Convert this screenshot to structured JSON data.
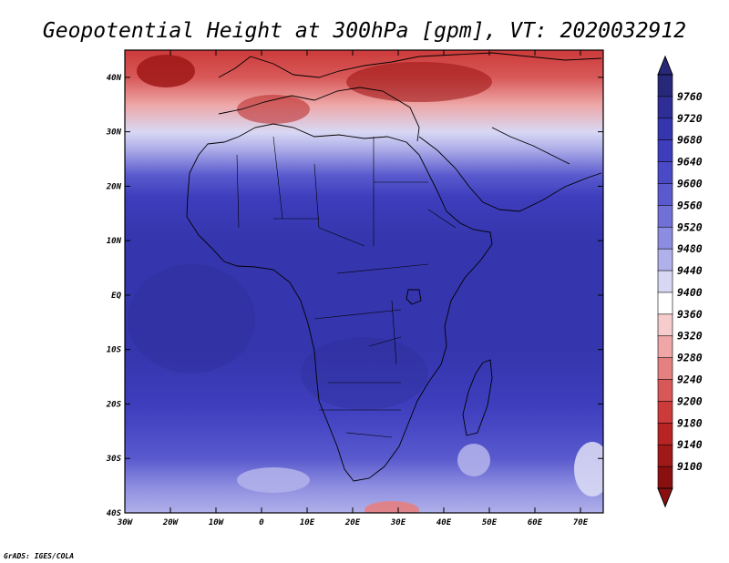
{
  "title": "Geopotential Height at 300hPa [gpm], VT: 2020032912",
  "credit": "GrADS: IGES/COLA",
  "map": {
    "lon_range": [
      -30,
      75
    ],
    "lat_range": [
      -40,
      45
    ],
    "lat_ticks": [
      {
        "lat": 40,
        "label": "40N"
      },
      {
        "lat": 30,
        "label": "30N"
      },
      {
        "lat": 20,
        "label": "20N"
      },
      {
        "lat": 10,
        "label": "10N"
      },
      {
        "lat": 0,
        "label": "EQ"
      },
      {
        "lat": -10,
        "label": "10S"
      },
      {
        "lat": -20,
        "label": "20S"
      },
      {
        "lat": -30,
        "label": "30S"
      },
      {
        "lat": -40,
        "label": "40S"
      }
    ],
    "lon_ticks": [
      {
        "lon": -30,
        "label": "30W"
      },
      {
        "lon": -20,
        "label": "20W"
      },
      {
        "lon": -10,
        "label": "10W"
      },
      {
        "lon": 0,
        "label": "0"
      },
      {
        "lon": 10,
        "label": "10E"
      },
      {
        "lon": 20,
        "label": "20E"
      },
      {
        "lon": 30,
        "label": "30E"
      },
      {
        "lon": 40,
        "label": "40E"
      },
      {
        "lon": 50,
        "label": "50E"
      },
      {
        "lon": 60,
        "label": "60E"
      },
      {
        "lon": 70,
        "label": "70E"
      }
    ]
  },
  "colorbar": {
    "labels": [
      "9760",
      "9720",
      "9680",
      "9640",
      "9600",
      "9560",
      "9520",
      "9480",
      "9440",
      "9400",
      "9360",
      "9320",
      "9280",
      "9240",
      "9200",
      "9180",
      "9140",
      "9100"
    ],
    "colors": [
      "#28287a",
      "#2e2e96",
      "#3535ad",
      "#3e3ebd",
      "#4a4ac6",
      "#5a5ace",
      "#7070d6",
      "#8c8ce0",
      "#b0b0ea",
      "#d8d8f4",
      "#ffffff",
      "#f6cccc",
      "#eea6a6",
      "#e48080",
      "#d85858",
      "#cc3a3a",
      "#b82424",
      "#a01818",
      "#8a1010"
    ]
  },
  "field_bands": [
    {
      "lat": 45,
      "value": 9180
    },
    {
      "lat": 40,
      "value": 9220
    },
    {
      "lat": 35,
      "value": 9300
    },
    {
      "lat": 30,
      "value": 9400
    },
    {
      "lat": 27,
      "value": 9460
    },
    {
      "lat": 22,
      "value": 9560
    },
    {
      "lat": 18,
      "value": 9640
    },
    {
      "lat": 10,
      "value": 9680
    },
    {
      "lat": 0,
      "value": 9690
    },
    {
      "lat": -10,
      "value": 9690
    },
    {
      "lat": -20,
      "value": 9670
    },
    {
      "lat": -25,
      "value": 9630
    },
    {
      "lat": -30,
      "value": 9560
    },
    {
      "lat": -35,
      "value": 9500
    },
    {
      "lat": -40,
      "value": 9460
    }
  ],
  "colors": {
    "frame": "#000000",
    "coastline": "#000000"
  }
}
